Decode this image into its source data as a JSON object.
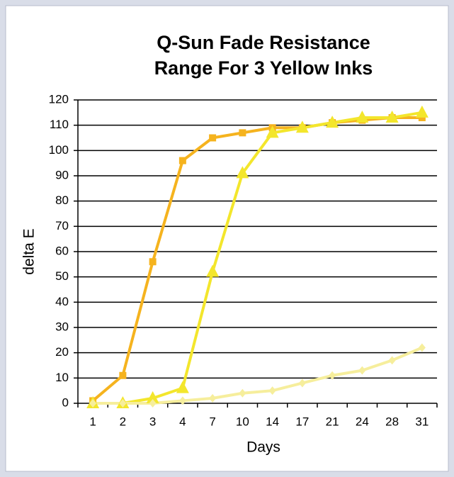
{
  "chart_data": {
    "type": "line",
    "title": [
      "Q-Sun Fade Resistance",
      "Range For 3 Yellow Inks"
    ],
    "x_label": "Days",
    "y_label": "delta E",
    "categories": [
      "1",
      "2",
      "3",
      "4",
      "7",
      "10",
      "14",
      "17",
      "21",
      "24",
      "28",
      "31"
    ],
    "series": [
      {
        "color": "#f5b31e",
        "marker": "square",
        "values": [
          1,
          11,
          56,
          96,
          105,
          107,
          109,
          109,
          111,
          112,
          113,
          113
        ]
      },
      {
        "color": "#f3e62c",
        "marker": "triangle",
        "values": [
          0,
          0,
          2,
          6,
          52,
          91,
          107,
          109,
          111,
          113,
          113,
          115
        ]
      },
      {
        "color": "#f6ee9c",
        "marker": "diamond",
        "values": [
          0,
          0,
          0,
          1,
          2,
          4,
          5,
          8,
          11,
          13,
          17,
          22
        ]
      }
    ],
    "ylim": [
      0,
      120
    ],
    "yticks": [
      0,
      10,
      20,
      30,
      40,
      50,
      60,
      70,
      80,
      90,
      100,
      110,
      120
    ],
    "grid": true
  }
}
